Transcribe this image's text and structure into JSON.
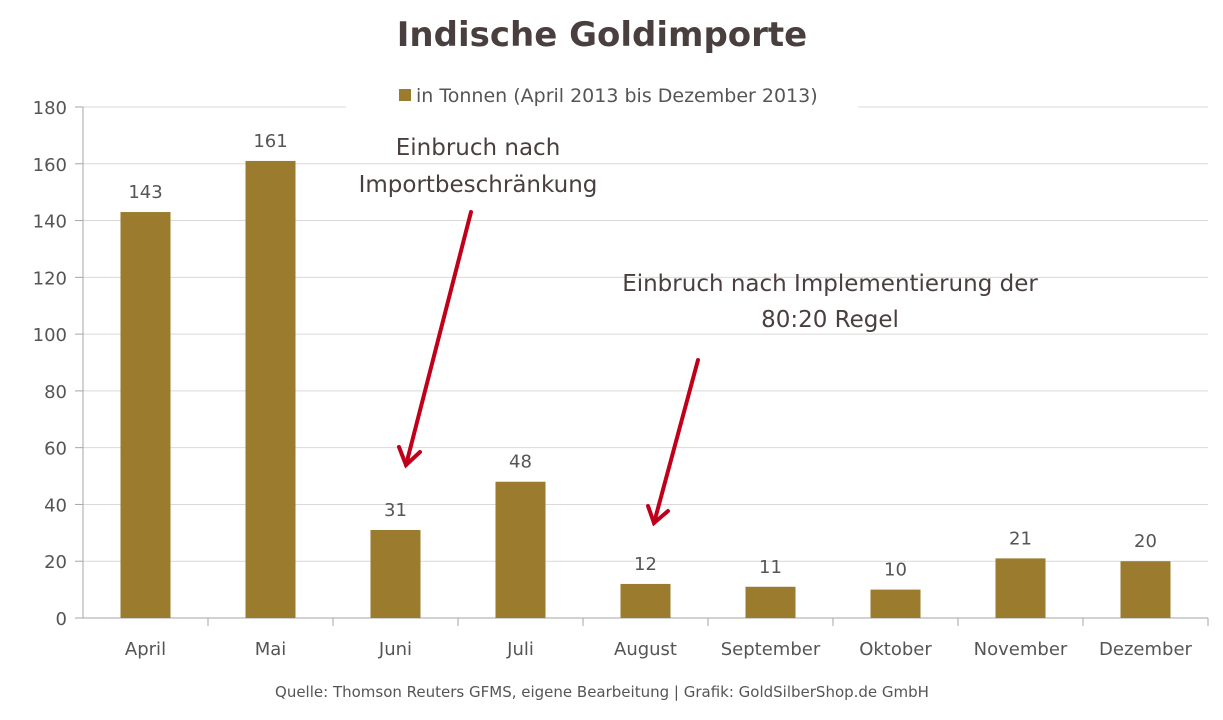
{
  "chart_data": {
    "type": "bar",
    "title": "Indische Goldimporte",
    "legend": "in Tonnen (April 2013 bis Dezember 2013)",
    "categories": [
      "April",
      "Mai",
      "Juni",
      "Juli",
      "August",
      "September",
      "Oktober",
      "November",
      "Dezember"
    ],
    "values": [
      143,
      161,
      31,
      48,
      12,
      11,
      10,
      21,
      20
    ],
    "ylim": [
      0,
      180
    ],
    "yticks": [
      0,
      20,
      40,
      60,
      80,
      100,
      120,
      140,
      160,
      180
    ],
    "xlabel": "",
    "ylabel": "",
    "grid": true,
    "legend_position": "top",
    "bar_color": "#9b7b2e",
    "annotations": [
      {
        "lines": [
          "Einbruch nach",
          "Importbeschränkung"
        ],
        "points_to": "Juni",
        "arrow_color": "#c0001a"
      },
      {
        "lines": [
          "Einbruch nach Implementierung der",
          "80:20 Regel"
        ],
        "points_to": "August",
        "arrow_color": "#c0001a"
      }
    ],
    "source": "Quelle: Thomson Reuters GFMS, eigene Bearbeitung | Grafik: GoldSilberShop.de GmbH"
  }
}
